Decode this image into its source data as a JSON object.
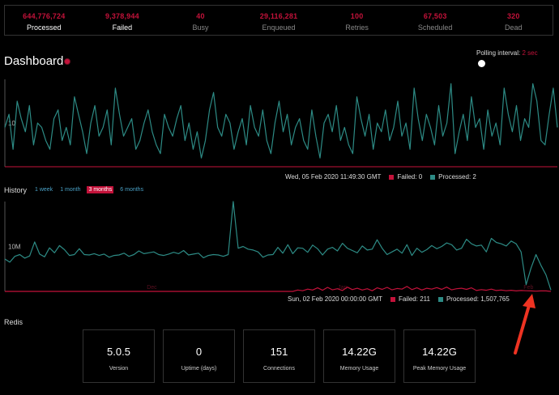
{
  "summary": [
    {
      "value": "644,776,724",
      "label": "Processed",
      "bright": true
    },
    {
      "value": "9,378,944",
      "label": "Failed",
      "bright": true
    },
    {
      "value": "40",
      "label": "Busy",
      "bright": false
    },
    {
      "value": "29,116,281",
      "label": "Enqueued",
      "bright": false
    },
    {
      "value": "100",
      "label": "Retries",
      "bright": false
    },
    {
      "value": "67,503",
      "label": "Scheduled",
      "bright": false
    },
    {
      "value": "320",
      "label": "Dead",
      "bright": false
    }
  ],
  "dashboard": {
    "title": "Dashboard",
    "polling_label": "Polling interval:",
    "polling_value": "2 sec"
  },
  "realtime": {
    "tooltip_time": "Wed, 05 Feb 2020 11:49:30 GMT",
    "failed_text": "Failed: 0",
    "processed_text": "Processed: 2"
  },
  "history": {
    "label": "History",
    "tabs": [
      "1 week",
      "1 month",
      "3 months",
      "6 months"
    ],
    "active_tab": "3 months",
    "tooltip_time": "Sun, 02 Feb 2020 00:00:00 GMT",
    "failed_text": "Failed: 211",
    "processed_text": "Processed: 1,507,765"
  },
  "redis": {
    "label": "Redis",
    "stats": [
      {
        "value": "5.0.5",
        "label": "Version"
      },
      {
        "value": "0",
        "label": "Uptime (days)"
      },
      {
        "value": "151",
        "label": "Connections"
      },
      {
        "value": "14.22G",
        "label": "Memory Usage"
      },
      {
        "value": "14.22G",
        "label": "Peak Memory Usage"
      }
    ]
  },
  "chart_data": [
    {
      "type": "line",
      "name": "realtime",
      "ytick_labels": [
        "10"
      ],
      "ylim": [
        0,
        20
      ],
      "ytick_values": [
        10
      ],
      "series": [
        {
          "name": "Processed",
          "color": "#2d8b85",
          "values": [
            9,
            12,
            4,
            15,
            11,
            8,
            14,
            5,
            10,
            9,
            6,
            4,
            11,
            13,
            6,
            9,
            5,
            16,
            12,
            8,
            3,
            10,
            14,
            7,
            9,
            13,
            5,
            18,
            12,
            7,
            9,
            11,
            4,
            6,
            10,
            13,
            8,
            5,
            3,
            12,
            9,
            7,
            11,
            14,
            6,
            10,
            4,
            8,
            2,
            6,
            13,
            17,
            9,
            7,
            12,
            10,
            4,
            8,
            11,
            5,
            14,
            9,
            7,
            13,
            6,
            3,
            10,
            15,
            8,
            12,
            5,
            9,
            11,
            6,
            4,
            13,
            7,
            2,
            10,
            12,
            8,
            14,
            6,
            9,
            5,
            3,
            16,
            11,
            7,
            12,
            4,
            10,
            8,
            13,
            6,
            9,
            15,
            7,
            10,
            4,
            18,
            11,
            6,
            12,
            9,
            5,
            14,
            7,
            10,
            19,
            3,
            8,
            12,
            6,
            16,
            9,
            11,
            4,
            13,
            7,
            10,
            5,
            18,
            12,
            8,
            14,
            6,
            11,
            9,
            19,
            15,
            6,
            5,
            12,
            18,
            9
          ]
        },
        {
          "name": "Failed",
          "color": "#c3123a",
          "values": [
            0
          ]
        }
      ]
    },
    {
      "type": "line",
      "name": "history",
      "ytick_labels": [
        "10M"
      ],
      "ytick_values": [
        10000000
      ],
      "ylim": [
        0,
        20000000
      ],
      "x_labels": [
        "Dec",
        "Jan",
        "Feb"
      ],
      "series": [
        {
          "name": "Processed",
          "color": "#2d8b85",
          "values": [
            7200000,
            6500000,
            7800000,
            8200000,
            7400000,
            7900000,
            11000000,
            8300000,
            7700000,
            9700000,
            8600000,
            10200000,
            9300000,
            8000000,
            8200000,
            9500000,
            8200000,
            8100000,
            8400000,
            8000000,
            8300000,
            7600000,
            8000000,
            8100000,
            8500000,
            7800000,
            8200000,
            9000000,
            8400000,
            8600000,
            8800000,
            8200000,
            8000000,
            8300000,
            8700000,
            8400000,
            9100000,
            8100000,
            8300000,
            8500000,
            7500000,
            8000000,
            8200000,
            8100000,
            7800000,
            8200000,
            20000000,
            9600000,
            10000000,
            9400000,
            9200000,
            8800000,
            7600000,
            8100000,
            8200000,
            9800000,
            8500000,
            10400000,
            8400000,
            9700000,
            9600000,
            8700000,
            10300000,
            9500000,
            8100000,
            9400000,
            9800000,
            9000000,
            10700000,
            9600000,
            9100000,
            8600000,
            10100000,
            9200000,
            9400000,
            11500000,
            9600000,
            8200000,
            8800000,
            9400000,
            8500000,
            10400000,
            8000000,
            9600000,
            8700000,
            9300000,
            10200000,
            9500000,
            10000000,
            10800000,
            10400000,
            9200000,
            9600000,
            11600000,
            10600000,
            10100000,
            10300000,
            8800000,
            11800000,
            10900000,
            10600000,
            10100000,
            11200000,
            10600000,
            8800000,
            1500000,
            5200000,
            8200000,
            5800000,
            3700000,
            300000
          ]
        },
        {
          "name": "Failed",
          "color": "#c3123a",
          "values": [
            0,
            0,
            0,
            0,
            0,
            0,
            0,
            0,
            0,
            0,
            0,
            0,
            0,
            0,
            0,
            0,
            0,
            0,
            0,
            0,
            0,
            0,
            0,
            0,
            0,
            0,
            0,
            0,
            0,
            0,
            0,
            0,
            0,
            0,
            0,
            0,
            0,
            0,
            0,
            0,
            0,
            0,
            0,
            0,
            0,
            0,
            0,
            0,
            0,
            0,
            0,
            0,
            0,
            0,
            0,
            0,
            0,
            0,
            0,
            300000,
            150000,
            500000,
            300000,
            800000,
            250000,
            900000,
            350000,
            600000,
            200000,
            950000,
            400000,
            700000,
            300000,
            600000,
            150000,
            800000,
            450000,
            900000,
            350000,
            650000,
            500000,
            1100000,
            400000,
            800000,
            300000,
            700000,
            500000,
            850000,
            450000,
            950000,
            350000,
            600000,
            700000,
            450000,
            800000,
            200000,
            400000,
            250000,
            500000,
            200000,
            300000,
            150000,
            250000,
            100000,
            200000,
            150000,
            100000,
            50000,
            100000,
            100000,
            0
          ]
        }
      ]
    }
  ]
}
